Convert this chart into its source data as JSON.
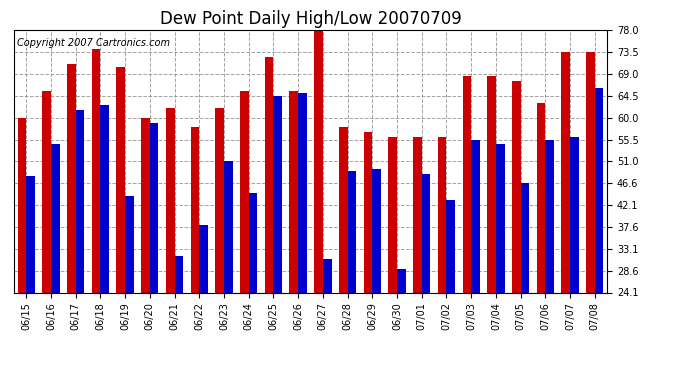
{
  "title": "Dew Point Daily High/Low 20070709",
  "copyright": "Copyright 2007 Cartronics.com",
  "categories": [
    "06/15",
    "06/16",
    "06/17",
    "06/18",
    "06/19",
    "06/20",
    "06/21",
    "06/22",
    "06/23",
    "06/24",
    "06/25",
    "06/26",
    "06/27",
    "06/28",
    "06/29",
    "06/30",
    "07/01",
    "07/02",
    "07/03",
    "07/04",
    "07/05",
    "07/06",
    "07/07",
    "07/08"
  ],
  "highs": [
    60.0,
    65.5,
    71.0,
    74.0,
    70.5,
    60.0,
    62.0,
    58.0,
    62.0,
    65.5,
    72.5,
    65.5,
    78.0,
    58.0,
    57.0,
    56.0,
    56.0,
    56.0,
    68.5,
    68.5,
    67.5,
    63.0,
    73.5,
    73.5
  ],
  "lows": [
    48.0,
    54.5,
    61.5,
    62.5,
    44.0,
    59.0,
    31.5,
    38.0,
    51.0,
    44.5,
    64.5,
    65.0,
    31.0,
    49.0,
    49.5,
    29.0,
    48.5,
    43.0,
    55.5,
    54.5,
    46.5,
    55.5,
    56.0,
    66.0
  ],
  "high_color": "#cc0000",
  "low_color": "#0000cc",
  "background_color": "#ffffff",
  "plot_background": "#ffffff",
  "grid_color": "#999999",
  "ylim": [
    24.1,
    78.0
  ],
  "ybase": 24.1,
  "yticks": [
    24.1,
    28.6,
    33.1,
    37.6,
    42.1,
    46.6,
    51.0,
    55.5,
    60.0,
    64.5,
    69.0,
    73.5,
    78.0
  ],
  "title_fontsize": 12,
  "tick_fontsize": 7,
  "copyright_fontsize": 7
}
